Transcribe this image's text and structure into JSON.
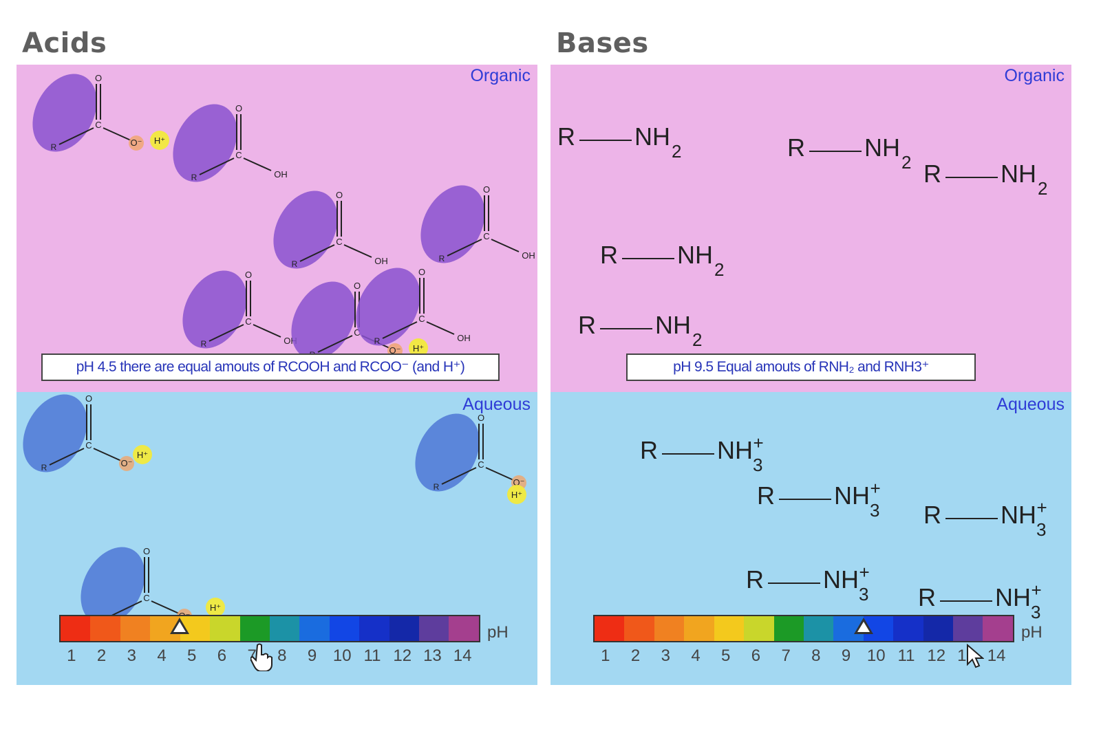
{
  "panels": {
    "acids": {
      "heading": "Acids",
      "organic_label": "Organic",
      "aqueous_label": "Aqueous",
      "message": "pH 4.5 there are equal amouts of RCOOH and RCOO⁻ (and H⁺)",
      "ph_value": 4.5,
      "ph_unit": "pH",
      "ticks": [
        "1",
        "2",
        "3",
        "4",
        "5",
        "6",
        "7",
        "8",
        "9",
        "10",
        "11",
        "12",
        "13",
        "14"
      ]
    },
    "bases": {
      "heading": "Bases",
      "organic_label": "Organic",
      "aqueous_label": "Aqueous",
      "message": "pH 9.5 Equal amouts of RNH₂ and RNH3⁺",
      "ph_value": 9.5,
      "ph_unit": "pH",
      "ticks": [
        "1",
        "2",
        "3",
        "4",
        "5",
        "6",
        "7",
        "8",
        "9",
        "10",
        "11",
        "12",
        "13",
        "14"
      ],
      "amine": {
        "r": "R",
        "nh": "NH",
        "sub_neutral": "2",
        "sub_charged": "3",
        "plus": "+"
      }
    }
  },
  "atoms": {
    "o": "O",
    "c": "C",
    "r": "R",
    "oh": "OH",
    "o_minus": "O⁻",
    "h_plus": "H⁺"
  },
  "colors": {
    "organic": "#edb4e8",
    "aqueous": "#a3d8f2",
    "molecule_organic": "#8a52cf",
    "molecule_aqueous": "#4f78d6",
    "proton": "#f2ea3c",
    "ph_scale": [
      "#ee2d14",
      "#f0581a",
      "#f08121",
      "#f1a51f",
      "#f3c91d",
      "#c9d62b",
      "#1c9a26",
      "#1c92a6",
      "#1a6cdf",
      "#1246e5",
      "#1530c8",
      "#1428a8",
      "#5e3d9d",
      "#a43f8e"
    ]
  }
}
